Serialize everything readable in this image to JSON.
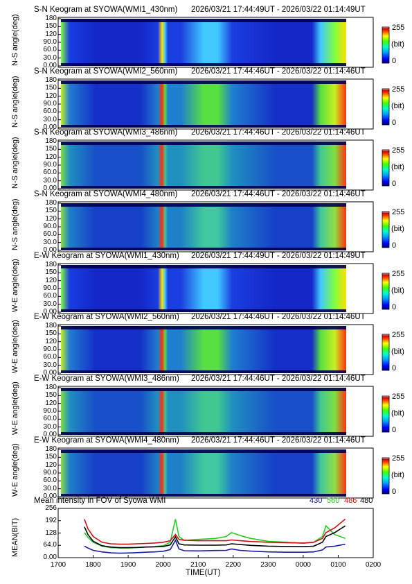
{
  "colorbar": {
    "max": "255",
    "unit": "(bit)",
    "min": "0"
  },
  "keograms": [
    {
      "title": "S-N Keogram at SYOWA(WMI1_430nm)",
      "time_range": "2026/03/21 17:44:49UT - 2026/03/22 01:14:49UT",
      "ylabel": "N-S angle(deg)",
      "ticks": [
        "180",
        "150",
        "120",
        "90.0",
        "60.0",
        "30.0",
        "0.00"
      ],
      "palette": "blue"
    },
    {
      "title": "S-N Keogram at SYOWA(WMI2_560nm)",
      "time_range": "2026/03/21 17:44:46UT - 2026/03/22 01:14:46UT",
      "ylabel": "N-S angle(deg)",
      "ticks": [
        "180",
        "150",
        "120",
        "90.0",
        "60.0",
        "30.0",
        "0.00"
      ],
      "palette": "green"
    },
    {
      "title": "S-N Keogram at SYOWA(WMI3_486nm)",
      "time_range": "2026/03/21 17:44:46UT - 2026/03/22 01:14:46UT",
      "ylabel": "N-S angle(deg)",
      "ticks": [
        "180",
        "150",
        "120",
        "90.0",
        "60.0",
        "30.0",
        "0.00"
      ],
      "palette": "teal"
    },
    {
      "title": "S-N Keogram at SYOWA(WMI4_480nm)",
      "time_range": "2026/03/21 17:44:46UT - 2026/03/22 01:14:46UT",
      "ylabel": "N-S angle(deg)",
      "ticks": [
        "180",
        "150",
        "120",
        "90.0",
        "60.0",
        "30.0",
        "0.00"
      ],
      "palette": "teal2"
    },
    {
      "title": "E-W Keogram at SYOWA(WMI1_430nm)",
      "time_range": "2026/03/21 17:44:49UT - 2026/03/22 01:14:49UT",
      "ylabel": "W-E angle(deg)",
      "ticks": [
        "180",
        "150",
        "120",
        "90.0",
        "60.0",
        "30.0",
        "0.00"
      ],
      "palette": "blue"
    },
    {
      "title": "E-W Keogram at SYOWA(WMI2_560nm)",
      "time_range": "2026/03/21 17:44:46UT - 2026/03/22 01:14:46UT",
      "ylabel": "W-E angle(deg)",
      "ticks": [
        "180",
        "150",
        "120",
        "90.0",
        "60.0",
        "30.0",
        "0.00"
      ],
      "palette": "green"
    },
    {
      "title": "E-W Keogram at SYOWA(WMI3_486nm)",
      "time_range": "2026/03/21 17:44:46UT - 2026/03/22 01:14:46UT",
      "ylabel": "W-E angle(deg)",
      "ticks": [
        "180",
        "150",
        "120",
        "90.0",
        "60.0",
        "30.0",
        "0.00"
      ],
      "palette": "teal"
    },
    {
      "title": "E-W Keogram at SYOWA(WMI4_480nm)",
      "time_range": "2026/03/21 17:44:46UT - 2026/03/22 01:14:46UT",
      "ylabel": "W-E angle(deg)",
      "ticks": [
        "180",
        "150",
        "120",
        "90.0",
        "60.0",
        "30.0",
        "0.00"
      ],
      "palette": "teal2"
    }
  ],
  "chart_data": {
    "type": "line",
    "title": "Mean intensity in FOV of Syowa WMI",
    "xlabel": "TIME(UT)",
    "ylabel": "MEAN(BIT)",
    "x_ticks": [
      "1700",
      "1800",
      "1900",
      "2000",
      "2100",
      "2200",
      "2300",
      "0000",
      "0100",
      "0200"
    ],
    "y_ticks": [
      "256",
      "192",
      "128",
      "64.0",
      "0.00"
    ],
    "ylim": [
      0,
      256
    ],
    "x": [
      17.75,
      17.85,
      18.0,
      18.25,
      18.5,
      18.75,
      19.0,
      19.25,
      19.5,
      19.75,
      20.0,
      20.2,
      20.35,
      20.45,
      20.6,
      21.0,
      21.5,
      21.8,
      21.95,
      22.2,
      22.5,
      23.0,
      23.5,
      24.0,
      24.3,
      24.55,
      24.65,
      24.9,
      25.2
    ],
    "series": [
      {
        "name": "430",
        "color": "#1a1aa6",
        "values": [
          60,
          50,
          38,
          30,
          25,
          23,
          24,
          26,
          28,
          30,
          33,
          42,
          90,
          45,
          36,
          35,
          37,
          38,
          45,
          38,
          34,
          30,
          28,
          28,
          30,
          40,
          55,
          60,
          70
        ]
      },
      {
        "name": "560",
        "color": "#22cc22",
        "values": [
          130,
          105,
          80,
          60,
          52,
          50,
          50,
          52,
          55,
          58,
          62,
          80,
          200,
          110,
          90,
          95,
          100,
          110,
          130,
          115,
          100,
          85,
          80,
          75,
          80,
          110,
          165,
          120,
          100
        ]
      },
      {
        "name": "486",
        "color": "#cc1111",
        "values": [
          200,
          150,
          110,
          80,
          72,
          70,
          70,
          72,
          74,
          76,
          80,
          88,
          120,
          95,
          90,
          88,
          88,
          88,
          92,
          88,
          84,
          80,
          78,
          76,
          80,
          100,
          130,
          155,
          200
        ]
      },
      {
        "name": "480",
        "color": "#000000",
        "values": [
          160,
          120,
          85,
          62,
          55,
          52,
          52,
          53,
          55,
          56,
          58,
          66,
          108,
          72,
          66,
          65,
          65,
          66,
          72,
          68,
          64,
          60,
          58,
          57,
          60,
          80,
          110,
          130,
          165
        ]
      }
    ]
  }
}
